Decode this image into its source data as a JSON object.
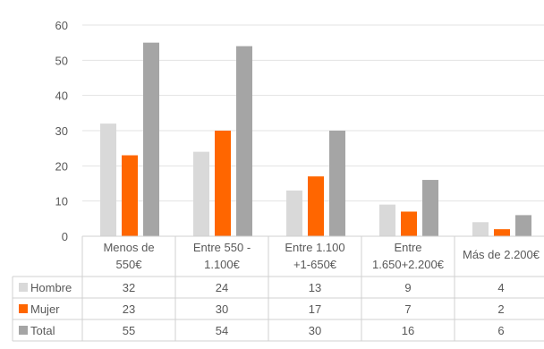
{
  "chart_data": {
    "type": "bar",
    "title": "",
    "xlabel": "",
    "ylabel": "",
    "ylim": [
      0,
      60
    ],
    "yticks": [
      0,
      10,
      20,
      30,
      40,
      50,
      60
    ],
    "grid": true,
    "legend": "data-table-left",
    "categories": [
      [
        "Menos de",
        "550€"
      ],
      [
        "Entre 550 -",
        "1.100€"
      ],
      [
        "Entre 1.100",
        "+1-650€"
      ],
      [
        "Entre",
        "1.650+2.200€"
      ],
      [
        "Más de 2.200€"
      ]
    ],
    "series": [
      {
        "name": "Hombre",
        "color": "#d9d9d9",
        "values": [
          32,
          24,
          13,
          9,
          4
        ]
      },
      {
        "name": "Mujer",
        "color": "#ff6600",
        "values": [
          23,
          30,
          17,
          7,
          2
        ]
      },
      {
        "name": "Total",
        "color": "#a5a5a5",
        "values": [
          55,
          54,
          30,
          16,
          6
        ]
      }
    ]
  }
}
